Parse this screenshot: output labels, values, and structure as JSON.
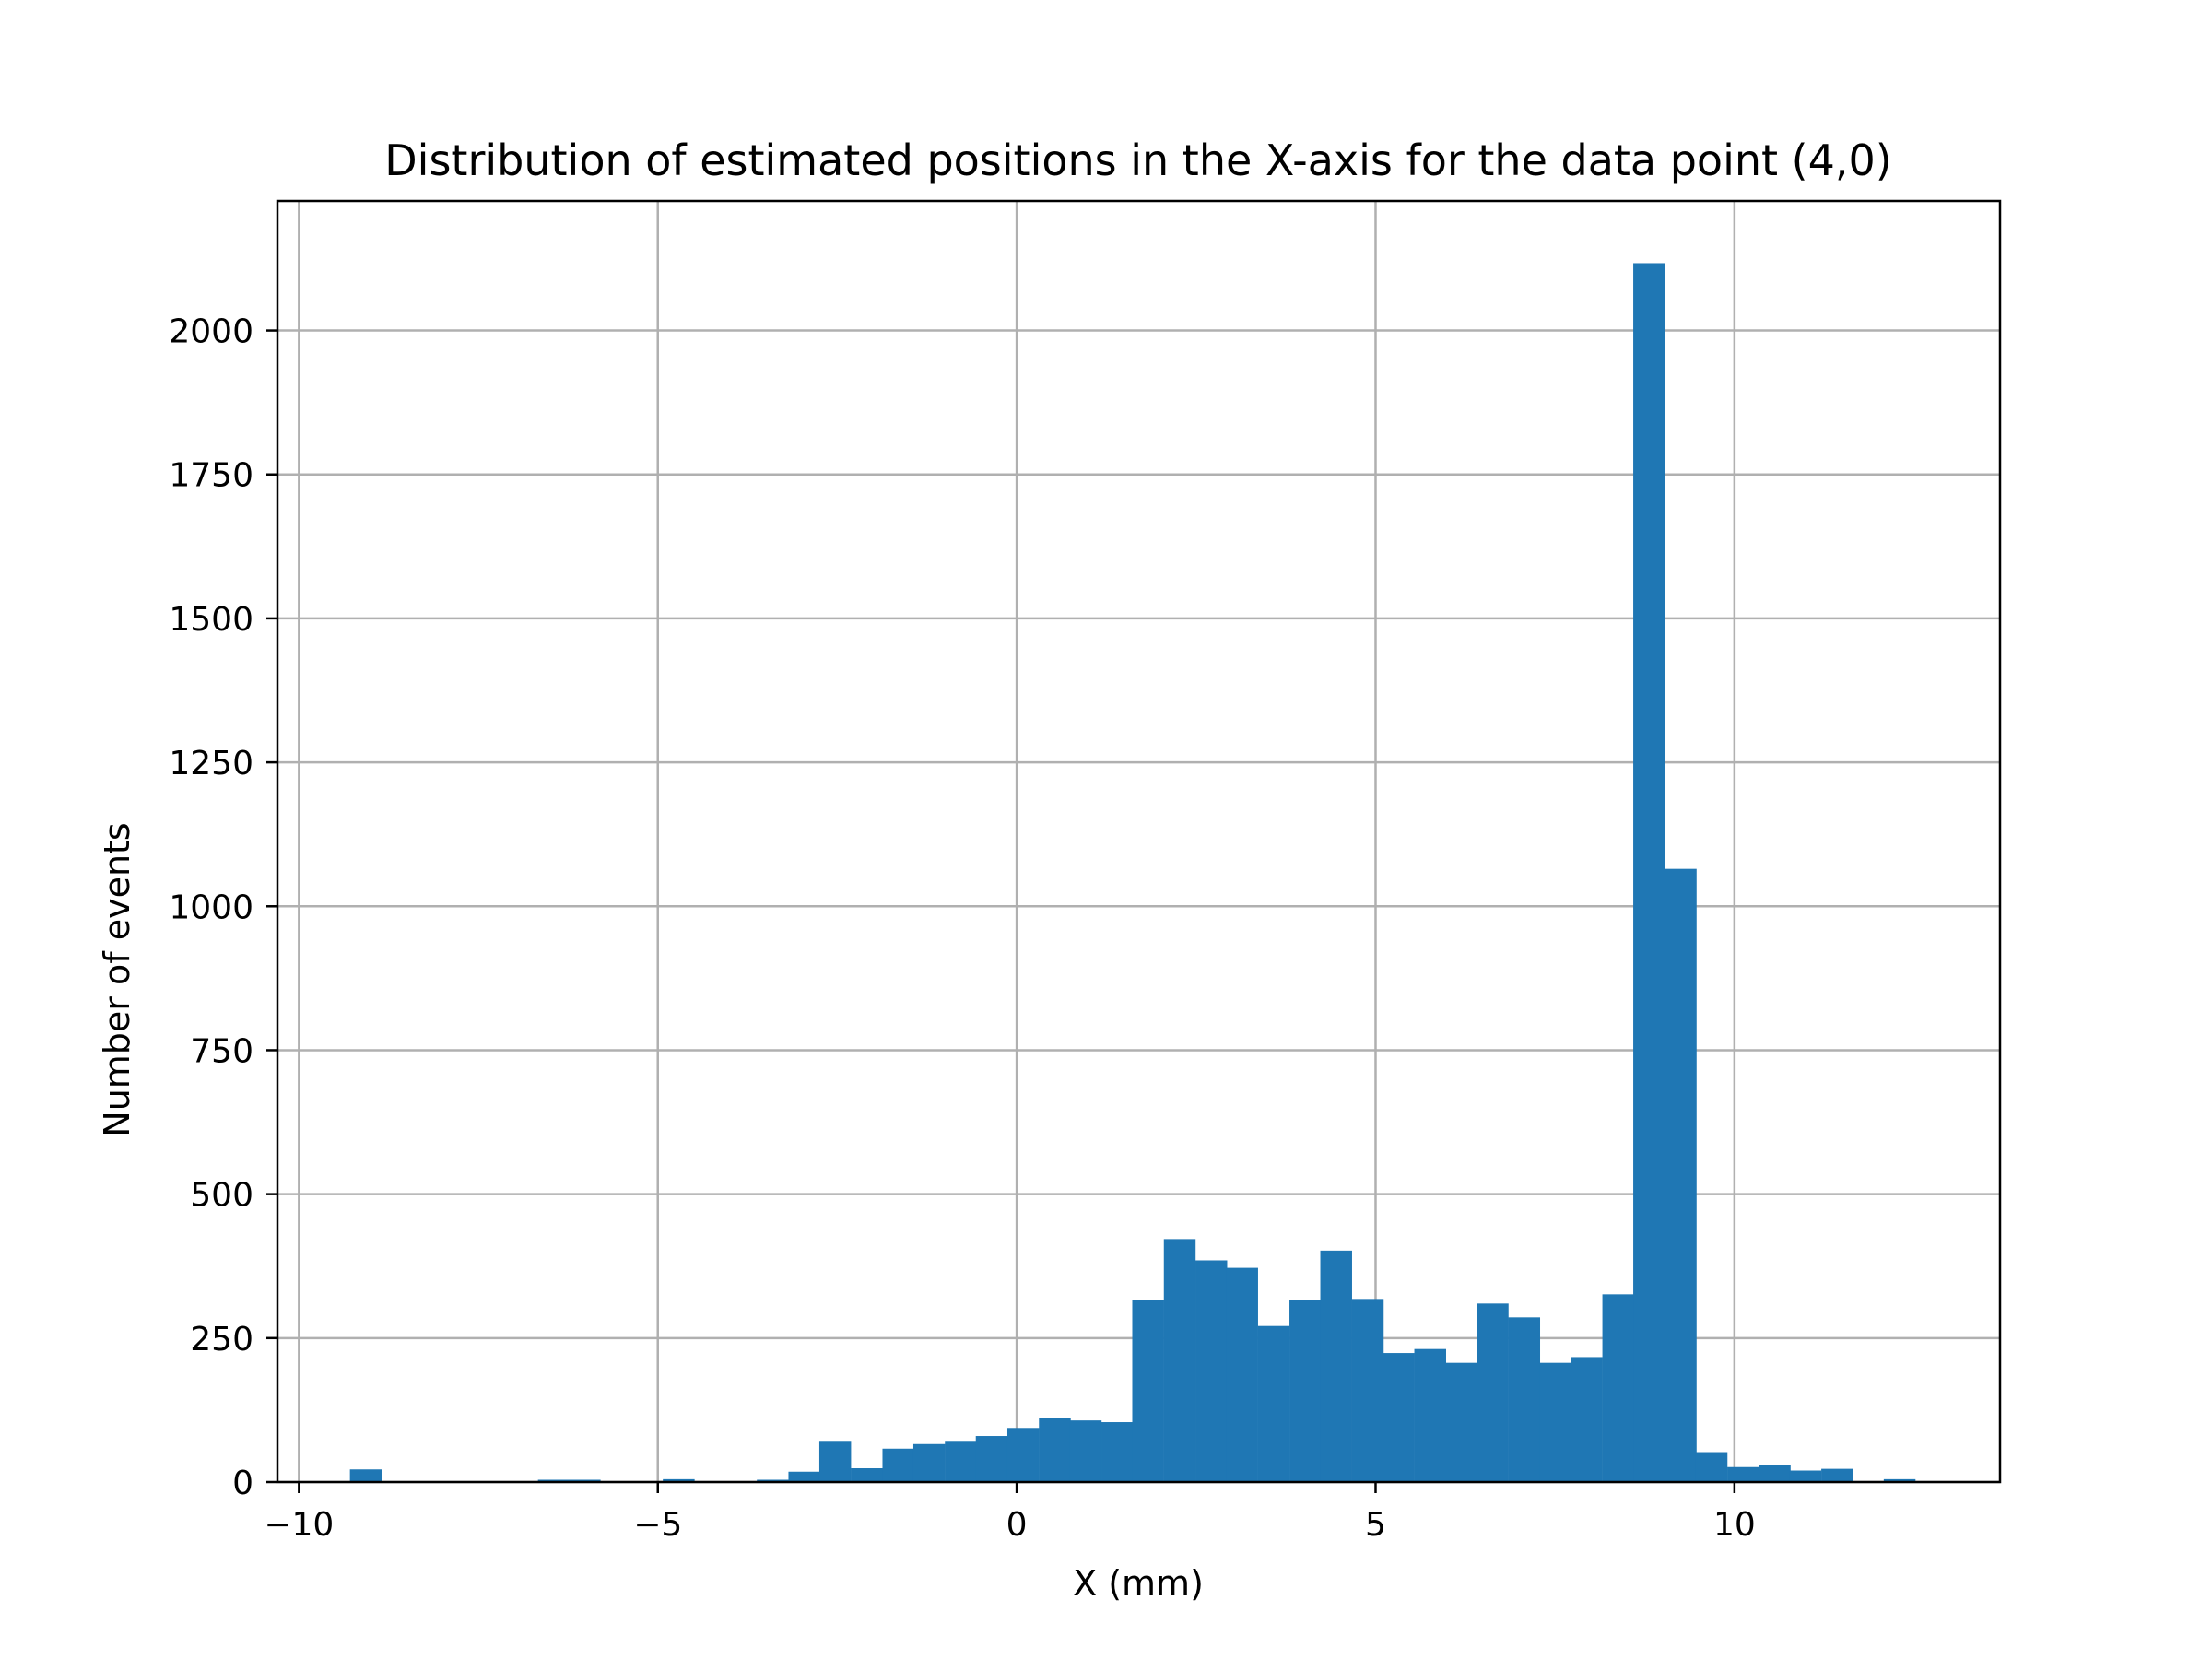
{
  "chart_data": {
    "type": "bar",
    "subtype": "histogram",
    "title": "Distribution of estimated positions in the X-axis for the data point (4,0)",
    "xlabel": "X (mm)",
    "ylabel": "Number of events",
    "xlim": [
      -10.3,
      13.7
    ],
    "ylim": [
      0,
      2225
    ],
    "xticks": [
      -10,
      -5,
      0,
      5,
      10
    ],
    "xtick_labels": [
      "−10",
      "−5",
      "0",
      "5",
      "10"
    ],
    "yticks": [
      0,
      250,
      500,
      750,
      1000,
      1250,
      1500,
      1750,
      2000
    ],
    "ytick_labels": [
      "0",
      "250",
      "500",
      "750",
      "1000",
      "1250",
      "1500",
      "1750",
      "2000"
    ],
    "grid": true,
    "bar_color": "#1f77b4",
    "bin_width": 0.436,
    "bin_left_edges": [
      -9.29,
      -8.85,
      -8.42,
      -7.98,
      -7.54,
      -7.11,
      -6.67,
      -6.24,
      -5.8,
      -5.36,
      -4.93,
      -4.49,
      -4.05,
      -3.62,
      -3.18,
      -2.75,
      -2.31,
      -1.87,
      -1.44,
      -1.0,
      -0.57,
      -0.13,
      0.31,
      0.74,
      1.18,
      1.61,
      2.05,
      2.49,
      2.92,
      3.36,
      3.8,
      4.23,
      4.67,
      5.1,
      5.54,
      5.98,
      6.41,
      6.85,
      7.28,
      7.72,
      8.16,
      8.59,
      9.03,
      9.46,
      9.9,
      10.34,
      10.77,
      11.21,
      11.65,
      12.08
    ],
    "values": [
      22,
      0,
      0,
      0,
      0,
      0,
      4,
      4,
      0,
      0,
      5,
      0,
      0,
      4,
      18,
      70,
      24,
      58,
      66,
      70,
      80,
      94,
      112,
      107,
      104,
      316,
      422,
      385,
      372,
      271,
      316,
      402,
      318,
      224,
      231,
      207,
      310,
      286,
      207,
      217,
      326,
      2117,
      1065,
      52,
      26,
      30,
      20,
      23,
      0,
      5
    ]
  }
}
